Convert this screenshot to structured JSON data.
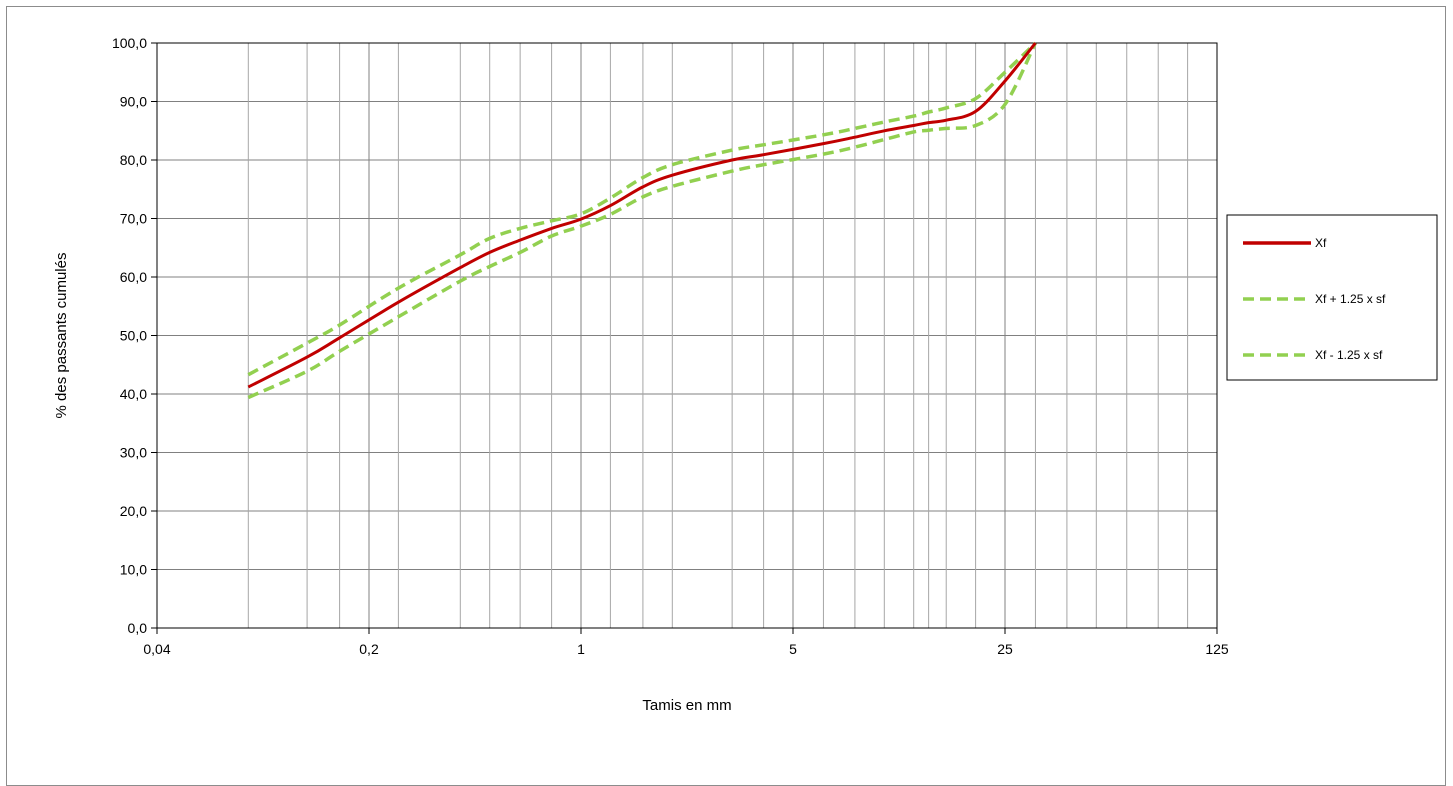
{
  "chart_data": {
    "type": "line",
    "xlabel": "Tamis en mm",
    "ylabel": "% des passants cumulés",
    "x_scale": "log",
    "xlim": [
      0.04,
      125
    ],
    "ylim": [
      0,
      100
    ],
    "x_ticks": [
      {
        "value": 0.04,
        "label": "0,04"
      },
      {
        "value": 0.2,
        "label": "0,2"
      },
      {
        "value": 1,
        "label": "1"
      },
      {
        "value": 5,
        "label": "5"
      },
      {
        "value": 25,
        "label": "25"
      },
      {
        "value": 125,
        "label": "125"
      }
    ],
    "y_ticks": [
      {
        "value": 0,
        "label": "0,0"
      },
      {
        "value": 10,
        "label": "10,0"
      },
      {
        "value": 20,
        "label": "20,0"
      },
      {
        "value": 30,
        "label": "30,0"
      },
      {
        "value": 40,
        "label": "40,0"
      },
      {
        "value": 50,
        "label": "50,0"
      },
      {
        "value": 60,
        "label": "60,0"
      },
      {
        "value": 70,
        "label": "70,0"
      },
      {
        "value": 80,
        "label": "80,0"
      },
      {
        "value": 90,
        "label": "90,0"
      },
      {
        "value": 100,
        "label": "100,0"
      }
    ],
    "x_gridlines": [
      0.08,
      0.125,
      0.16,
      0.25,
      0.4,
      0.5,
      0.63,
      0.8,
      1.25,
      1.6,
      2,
      3.15,
      4,
      6.3,
      8,
      10,
      12.5,
      14,
      16,
      20,
      31.5,
      40,
      50,
      63,
      80,
      100
    ],
    "grid": true,
    "legend_position": "right",
    "series": [
      {
        "name": "Xf",
        "color": "#c00000",
        "dash": "solid",
        "x": [
          0.08,
          0.125,
          0.16,
          0.25,
          0.4,
          0.5,
          0.63,
          0.8,
          1,
          1.25,
          1.6,
          2,
          3.15,
          4,
          6.3,
          8,
          10,
          12.5,
          14,
          16,
          20,
          25,
          31.5
        ],
        "y": [
          41.2,
          46.3,
          49.6,
          55.7,
          61.6,
          64.2,
          66.3,
          68.3,
          69.9,
          72.2,
          75.4,
          77.4,
          80.0,
          80.9,
          82.8,
          83.9,
          85.0,
          85.9,
          86.4,
          86.8,
          88.3,
          93.5,
          100.0
        ]
      },
      {
        "name": "Xf + 1.25 x sf",
        "color": "#92d050",
        "dash": "dashed",
        "x": [
          0.08,
          0.125,
          0.16,
          0.25,
          0.4,
          0.5,
          0.63,
          0.8,
          1,
          1.25,
          1.6,
          2,
          3.15,
          4,
          6.3,
          8,
          10,
          12.5,
          14,
          16,
          20,
          25,
          31.5
        ],
        "y": [
          43.3,
          48.7,
          51.8,
          58.1,
          63.8,
          66.6,
          68.3,
          69.6,
          70.8,
          73.5,
          77.0,
          79.2,
          81.7,
          82.6,
          84.3,
          85.4,
          86.5,
          87.5,
          88.2,
          88.9,
          90.5,
          95.0,
          100.0
        ]
      },
      {
        "name": "Xf - 1.25 x sf",
        "color": "#92d050",
        "dash": "dashed",
        "x": [
          0.08,
          0.125,
          0.16,
          0.25,
          0.4,
          0.5,
          0.63,
          0.8,
          1,
          1.25,
          1.6,
          2,
          3.15,
          4,
          6.3,
          8,
          10,
          12.5,
          14,
          16,
          20,
          25,
          31.5
        ],
        "y": [
          39.4,
          43.9,
          47.3,
          53.2,
          59.3,
          61.8,
          64.2,
          67.0,
          68.7,
          70.7,
          73.7,
          75.5,
          78.1,
          79.2,
          81.0,
          82.2,
          83.5,
          84.8,
          85.1,
          85.4,
          85.9,
          89.5,
          100.0
        ]
      }
    ]
  }
}
